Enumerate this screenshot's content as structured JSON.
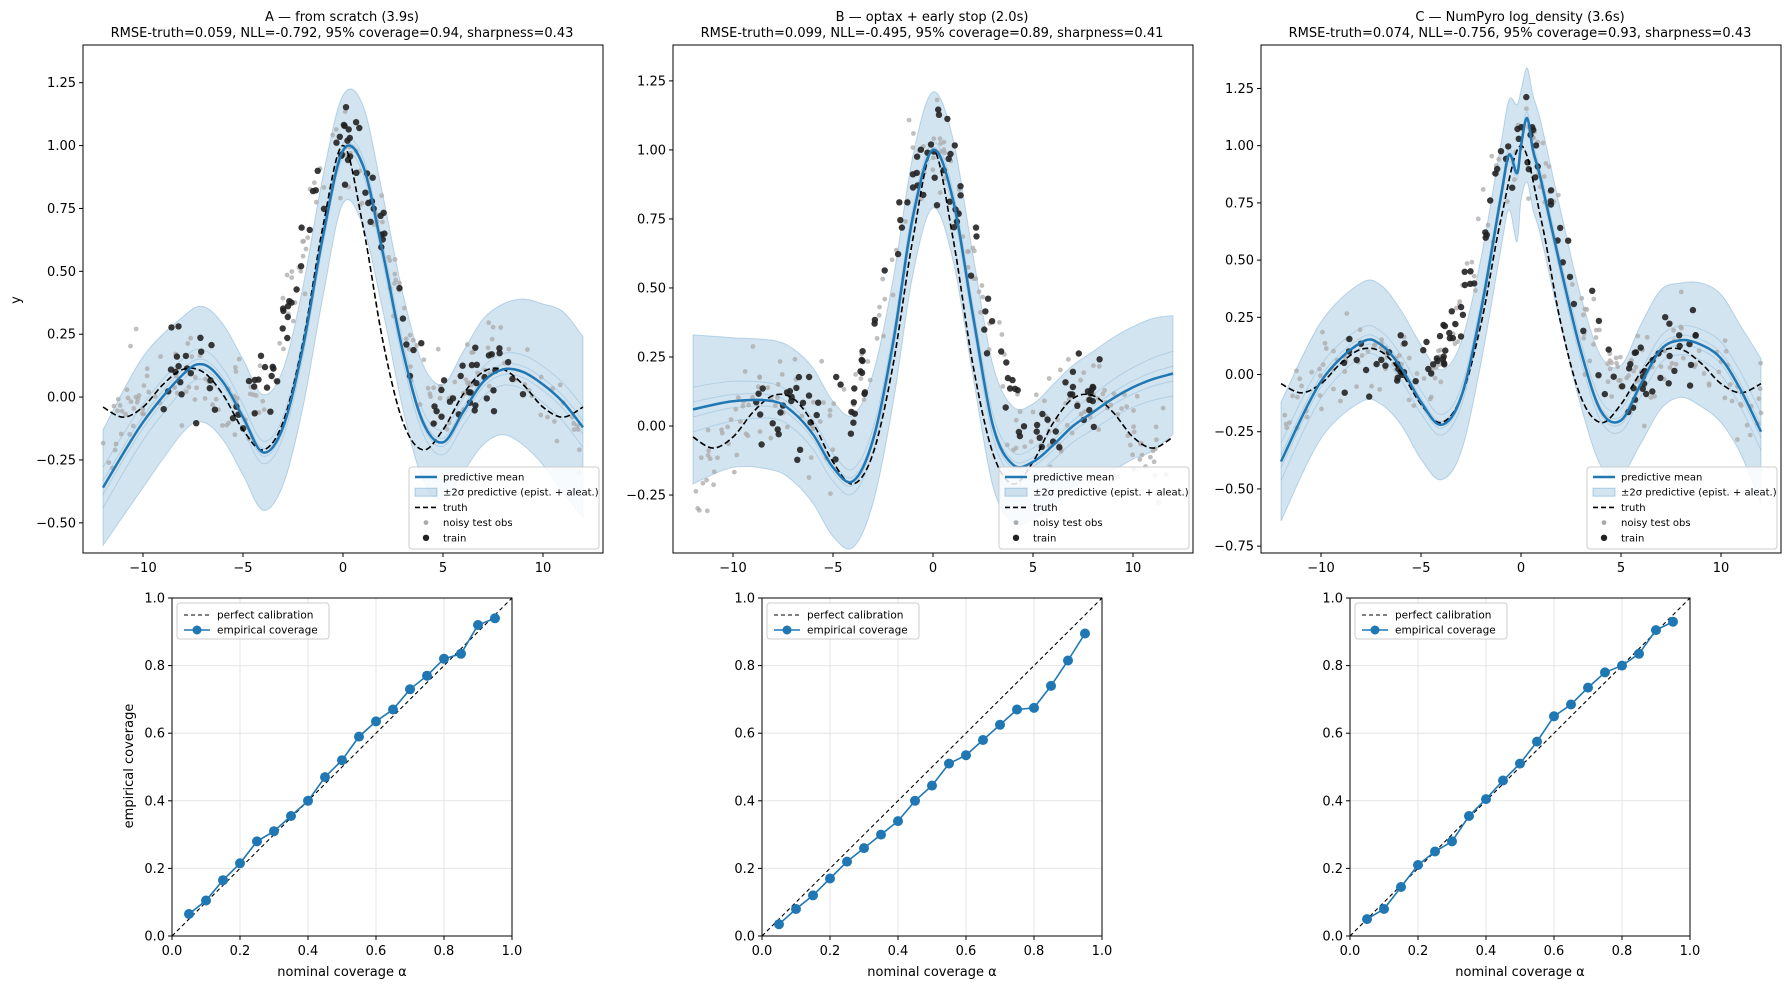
{
  "figure": {
    "colors": {
      "mean": "#1f77b4",
      "band": "#1f77b4",
      "truth": "#000000",
      "test_obs": "#aaaaaa",
      "train": "#222222",
      "grid": "#e6e6e6"
    }
  },
  "top_row": {
    "ylabel": "y",
    "legend": {
      "mean": "predictive mean",
      "band": "±2σ predictive (epist. + aleat.)",
      "truth": "truth",
      "test": "noisy test obs",
      "train": "train"
    }
  },
  "bottom_row": {
    "ylabel": "empirical coverage",
    "xlabel": "nominal coverage α",
    "legend": {
      "perfect": "perfect calibration",
      "empirical": "empirical coverage"
    }
  },
  "chart_data": [
    {
      "type": "line",
      "title": "A — from scratch  (3.9s)",
      "subtitle": "RMSE-truth=0.059, NLL=-0.792, 95% coverage=0.94, sharpness=0.43",
      "xlim": [
        -13,
        13
      ],
      "ylim": [
        -0.62,
        1.4
      ],
      "xticks": [
        -10,
        -5,
        0,
        5,
        10
      ],
      "yticks": [
        -0.5,
        -0.25,
        0.0,
        0.25,
        0.5,
        0.75,
        1.0,
        1.25
      ],
      "ytick_labels": [
        "−0.50",
        "−0.25",
        "0.00",
        "0.25",
        "0.50",
        "0.75",
        "1.00",
        "1.25"
      ],
      "legend_position": "lower right",
      "series": [
        {
          "name": "predictive mean",
          "x": [
            -12,
            -10,
            -8,
            -7,
            -6,
            -5,
            -4,
            -3,
            -2,
            -1,
            0,
            1,
            2,
            3,
            4,
            5,
            6,
            7,
            8,
            9,
            10,
            11,
            12
          ],
          "y": [
            -0.36,
            -0.1,
            0.09,
            0.13,
            0.06,
            -0.08,
            -0.22,
            -0.12,
            0.2,
            0.64,
            0.98,
            0.92,
            0.57,
            0.18,
            -0.1,
            -0.18,
            -0.06,
            0.06,
            0.11,
            0.1,
            0.05,
            -0.02,
            -0.12
          ]
        },
        {
          "name": "±2σ predictive (epist. + aleat.)",
          "x": [
            -12,
            -10,
            -8,
            -7,
            -6,
            -5,
            -4,
            -3,
            -2,
            -1,
            0,
            1,
            2,
            3,
            4,
            5,
            6,
            7,
            8,
            9,
            10,
            11,
            12
          ],
          "lower": [
            -0.59,
            -0.36,
            -0.14,
            -0.1,
            -0.17,
            -0.31,
            -0.45,
            -0.35,
            -0.04,
            0.4,
            0.77,
            0.68,
            0.34,
            -0.05,
            -0.33,
            -0.41,
            -0.3,
            -0.19,
            -0.15,
            -0.19,
            -0.27,
            -0.38,
            -0.48
          ],
          "upper": [
            -0.13,
            0.16,
            0.32,
            0.36,
            0.29,
            0.15,
            0.01,
            0.11,
            0.44,
            0.88,
            1.2,
            1.16,
            0.8,
            0.41,
            0.13,
            0.05,
            0.18,
            0.31,
            0.37,
            0.39,
            0.37,
            0.34,
            0.24
          ]
        },
        {
          "name": "truth",
          "x": [
            -12,
            -11,
            -10,
            -9,
            -8,
            -7,
            -6,
            -5,
            -4,
            -3,
            -2,
            -1,
            0,
            1,
            2,
            3,
            4,
            5,
            6,
            7,
            8,
            9,
            10,
            11,
            12
          ],
          "y": [
            -0.04,
            -0.08,
            -0.04,
            0.05,
            0.11,
            0.1,
            0.01,
            -0.13,
            -0.21,
            -0.1,
            0.22,
            0.68,
            1.0,
            0.68,
            0.22,
            -0.1,
            -0.21,
            -0.13,
            0.01,
            0.1,
            0.11,
            0.05,
            -0.04,
            -0.08,
            -0.04
          ]
        }
      ]
    },
    {
      "type": "line",
      "title": "B — optax + early stop  (2.0s)",
      "subtitle": "RMSE-truth=0.099, NLL=-0.495, 95% coverage=0.89, sharpness=0.41",
      "xlim": [
        -13,
        13
      ],
      "ylim": [
        -0.46,
        1.38
      ],
      "xticks": [
        -10,
        -5,
        0,
        5,
        10
      ],
      "yticks": [
        -0.25,
        0.0,
        0.25,
        0.5,
        0.75,
        1.0,
        1.25
      ],
      "ytick_labels": [
        "−0.25",
        "0.00",
        "0.25",
        "0.50",
        "0.75",
        "1.00",
        "1.25"
      ],
      "legend_position": "lower right",
      "series": [
        {
          "name": "predictive mean",
          "x": [
            -12,
            -10,
            -8,
            -7,
            -6,
            -5,
            -4,
            -3,
            -2,
            -1,
            0,
            1,
            2,
            3,
            4,
            5,
            6,
            7,
            8,
            9,
            10,
            11,
            12
          ],
          "y": [
            0.06,
            0.09,
            0.09,
            0.05,
            -0.03,
            -0.15,
            -0.2,
            -0.05,
            0.3,
            0.76,
            1.0,
            0.82,
            0.4,
            0.0,
            -0.14,
            -0.13,
            -0.07,
            0.0,
            0.05,
            0.1,
            0.14,
            0.17,
            0.19
          ]
        },
        {
          "name": "±2σ predictive (epist. + aleat.)",
          "x": [
            -12,
            -10,
            -8,
            -7,
            -6,
            -5,
            -4,
            -3,
            -2,
            -1,
            0,
            1,
            2,
            3,
            4,
            5,
            6,
            7,
            8,
            9,
            10,
            11,
            12
          ],
          "lower": [
            -0.21,
            -0.15,
            -0.16,
            -0.2,
            -0.28,
            -0.4,
            -0.44,
            -0.28,
            0.08,
            0.55,
            0.79,
            0.6,
            0.18,
            -0.22,
            -0.35,
            -0.34,
            -0.29,
            -0.22,
            -0.18,
            -0.16,
            -0.12,
            -0.09,
            -0.03
          ],
          "upper": [
            0.33,
            0.32,
            0.31,
            0.28,
            0.21,
            0.09,
            0.04,
            0.19,
            0.53,
            0.98,
            1.21,
            1.04,
            0.62,
            0.22,
            0.07,
            0.08,
            0.15,
            0.22,
            0.27,
            0.32,
            0.36,
            0.39,
            0.4
          ]
        },
        {
          "name": "truth",
          "x": [
            -12,
            -11,
            -10,
            -9,
            -8,
            -7,
            -6,
            -5,
            -4,
            -3,
            -2,
            -1,
            0,
            1,
            2,
            3,
            4,
            5,
            6,
            7,
            8,
            9,
            10,
            11,
            12
          ],
          "y": [
            -0.04,
            -0.08,
            -0.04,
            0.05,
            0.11,
            0.1,
            0.01,
            -0.13,
            -0.21,
            -0.1,
            0.22,
            0.68,
            1.0,
            0.68,
            0.22,
            -0.1,
            -0.21,
            -0.13,
            0.01,
            0.1,
            0.11,
            0.05,
            -0.04,
            -0.08,
            -0.04
          ]
        }
      ]
    },
    {
      "type": "line",
      "title": "C — NumPyro log_density  (3.6s)",
      "subtitle": "RMSE-truth=0.074, NLL=-0.756, 95% coverage=0.93, sharpness=0.43",
      "xlim": [
        -13,
        13
      ],
      "ylim": [
        -0.78,
        1.44
      ],
      "xticks": [
        -10,
        -5,
        0,
        5,
        10
      ],
      "yticks": [
        -0.75,
        -0.5,
        -0.25,
        0.0,
        0.25,
        0.5,
        0.75,
        1.0,
        1.25
      ],
      "ytick_labels": [
        "−0.75",
        "−0.50",
        "−0.25",
        "0.00",
        "0.25",
        "0.50",
        "0.75",
        "1.00",
        "1.25"
      ],
      "legend_position": "lower right",
      "series": [
        {
          "name": "predictive mean",
          "x": [
            -12,
            -10,
            -8,
            -7,
            -6,
            -5,
            -4,
            -3,
            -2,
            -1,
            -0.6,
            -0.2,
            0,
            0.3,
            0.6,
            1,
            2,
            3,
            4,
            5,
            6,
            7,
            8,
            9,
            10,
            11,
            12
          ],
          "y": [
            -0.38,
            -0.03,
            0.14,
            0.13,
            0.03,
            -0.12,
            -0.22,
            -0.1,
            0.28,
            0.78,
            0.96,
            0.88,
            1.0,
            1.12,
            0.98,
            0.85,
            0.46,
            0.1,
            -0.16,
            -0.2,
            -0.04,
            0.11,
            0.15,
            0.13,
            0.07,
            -0.07,
            -0.25
          ]
        },
        {
          "name": "±2σ predictive (epist. + aleat.)",
          "x": [
            -12,
            -10,
            -8,
            -7,
            -6,
            -5,
            -4,
            -3,
            -2,
            -1,
            -0.6,
            -0.2,
            0,
            0.3,
            0.6,
            1,
            2,
            3,
            4,
            5,
            6,
            7,
            8,
            9,
            10,
            11,
            12
          ],
          "lower": [
            -0.64,
            -0.28,
            -0.12,
            -0.13,
            -0.22,
            -0.37,
            -0.46,
            -0.34,
            0.05,
            0.55,
            0.72,
            0.58,
            0.76,
            0.84,
            0.72,
            0.6,
            0.21,
            -0.14,
            -0.4,
            -0.44,
            -0.3,
            -0.15,
            -0.1,
            -0.14,
            -0.21,
            -0.35,
            -0.57
          ],
          "upper": [
            -0.12,
            0.23,
            0.4,
            0.39,
            0.28,
            0.13,
            0.02,
            0.14,
            0.51,
            1.01,
            1.2,
            1.18,
            1.24,
            1.34,
            1.22,
            1.1,
            0.71,
            0.34,
            0.08,
            0.04,
            0.22,
            0.37,
            0.4,
            0.4,
            0.35,
            0.21,
            0.07
          ]
        },
        {
          "name": "truth",
          "x": [
            -12,
            -11,
            -10,
            -9,
            -8,
            -7,
            -6,
            -5,
            -4,
            -3,
            -2,
            -1,
            0,
            1,
            2,
            3,
            4,
            5,
            6,
            7,
            8,
            9,
            10,
            11,
            12
          ],
          "y": [
            -0.04,
            -0.08,
            -0.04,
            0.05,
            0.11,
            0.1,
            0.01,
            -0.13,
            -0.21,
            -0.1,
            0.22,
            0.68,
            1.0,
            0.68,
            0.22,
            -0.1,
            -0.21,
            -0.13,
            0.01,
            0.1,
            0.11,
            0.05,
            -0.04,
            -0.08,
            -0.04
          ]
        }
      ]
    },
    {
      "type": "line",
      "xlim": [
        0,
        1
      ],
      "ylim": [
        0,
        1
      ],
      "ticks": [
        0.0,
        0.2,
        0.4,
        0.6,
        0.8,
        1.0
      ],
      "tick_labels": [
        "0.0",
        "0.2",
        "0.4",
        "0.6",
        "0.8",
        "1.0"
      ],
      "grid": true,
      "legend_position": "upper left",
      "series": [
        {
          "name": "perfect calibration",
          "x": [
            0,
            1
          ],
          "y": [
            0,
            1
          ]
        },
        {
          "name": "empirical coverage",
          "x": [
            0.05,
            0.1,
            0.15,
            0.2,
            0.25,
            0.3,
            0.35,
            0.4,
            0.45,
            0.5,
            0.55,
            0.6,
            0.65,
            0.7,
            0.75,
            0.8,
            0.85,
            0.9,
            0.95
          ],
          "y": [
            0.065,
            0.105,
            0.165,
            0.215,
            0.28,
            0.31,
            0.355,
            0.4,
            0.47,
            0.52,
            0.59,
            0.635,
            0.67,
            0.73,
            0.77,
            0.82,
            0.835,
            0.92,
            0.94
          ]
        }
      ]
    },
    {
      "type": "line",
      "xlim": [
        0,
        1
      ],
      "ylim": [
        0,
        1
      ],
      "ticks": [
        0.0,
        0.2,
        0.4,
        0.6,
        0.8,
        1.0
      ],
      "tick_labels": [
        "0.0",
        "0.2",
        "0.4",
        "0.6",
        "0.8",
        "1.0"
      ],
      "grid": true,
      "legend_position": "upper left",
      "series": [
        {
          "name": "perfect calibration",
          "x": [
            0,
            1
          ],
          "y": [
            0,
            1
          ]
        },
        {
          "name": "empirical coverage",
          "x": [
            0.05,
            0.1,
            0.15,
            0.2,
            0.25,
            0.3,
            0.35,
            0.4,
            0.45,
            0.5,
            0.55,
            0.6,
            0.65,
            0.7,
            0.75,
            0.8,
            0.85,
            0.9,
            0.95
          ],
          "y": [
            0.035,
            0.08,
            0.12,
            0.17,
            0.22,
            0.26,
            0.3,
            0.34,
            0.4,
            0.445,
            0.51,
            0.535,
            0.58,
            0.625,
            0.67,
            0.675,
            0.74,
            0.815,
            0.895
          ]
        }
      ]
    },
    {
      "type": "line",
      "xlim": [
        0,
        1
      ],
      "ylim": [
        0,
        1
      ],
      "ticks": [
        0.0,
        0.2,
        0.4,
        0.6,
        0.8,
        1.0
      ],
      "tick_labels": [
        "0.0",
        "0.2",
        "0.4",
        "0.6",
        "0.8",
        "1.0"
      ],
      "grid": true,
      "legend_position": "upper left",
      "series": [
        {
          "name": "perfect calibration",
          "x": [
            0,
            1
          ],
          "y": [
            0,
            1
          ]
        },
        {
          "name": "empirical coverage",
          "x": [
            0.05,
            0.1,
            0.15,
            0.2,
            0.25,
            0.3,
            0.35,
            0.4,
            0.45,
            0.5,
            0.55,
            0.6,
            0.65,
            0.7,
            0.75,
            0.8,
            0.85,
            0.9,
            0.95
          ],
          "y": [
            0.05,
            0.08,
            0.145,
            0.21,
            0.25,
            0.28,
            0.355,
            0.405,
            0.46,
            0.51,
            0.575,
            0.65,
            0.685,
            0.735,
            0.78,
            0.8,
            0.835,
            0.905,
            0.93
          ]
        }
      ]
    }
  ]
}
